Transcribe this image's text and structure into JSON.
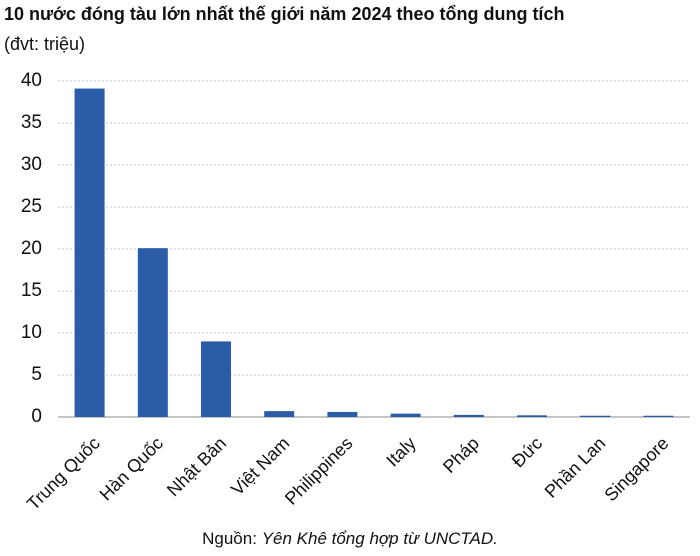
{
  "chart_data": {
    "type": "bar",
    "title": "10 nước đóng tàu lớn nhất thế giới năm 2024 theo tổng dung tích",
    "subtitle": "(đvt: triệu)",
    "categories": [
      "Trung Quốc",
      "Hàn Quốc",
      "Nhật Bản",
      "Việt Nam",
      "Philippines",
      "Italy",
      "Pháp",
      "Đức",
      "Phần Lan",
      "Singapore"
    ],
    "values": [
      39.1,
      20.1,
      9.0,
      0.7,
      0.6,
      0.4,
      0.25,
      0.2,
      0.15,
      0.15
    ],
    "color": "#2a5ca8",
    "ylim": [
      0,
      40
    ],
    "yticks": [
      0,
      5,
      10,
      15,
      20,
      25,
      30,
      35,
      40
    ],
    "grid": true,
    "source": {
      "label": "Nguồn:",
      "text": "Yên Khê tổng hợp từ UNCTAD."
    }
  }
}
